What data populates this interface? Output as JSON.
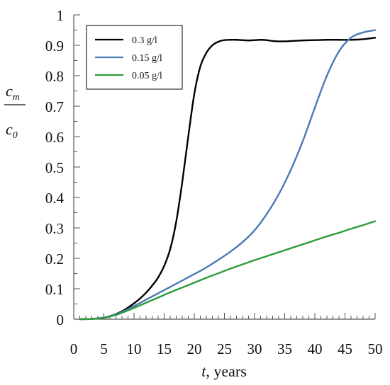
{
  "chart_data": {
    "type": "line",
    "title": "",
    "xlabel_var": "t",
    "xlabel_rest": ", years",
    "ylabel_num": "c",
    "ylabel_num_sub": "m",
    "ylabel_den": "c",
    "ylabel_den_sub": "0",
    "xlim": [
      0,
      50
    ],
    "ylim": [
      0,
      1
    ],
    "xticks": [
      "0",
      "5",
      "10",
      "15",
      "20",
      "25",
      "30",
      "35",
      "40",
      "45",
      "50"
    ],
    "yticks": [
      "0",
      "0.1",
      "0.2",
      "0.3",
      "0.4",
      "0.5",
      "0.6",
      "0.7",
      "0.8",
      "0.9",
      "1"
    ],
    "grid": false,
    "legend_position": "top-left",
    "series": [
      {
        "name": "0.3 g/l",
        "color": "#000000",
        "x": [
          1,
          3,
          5,
          6,
          7,
          8,
          9,
          10,
          11,
          12,
          13,
          14,
          15,
          16,
          17,
          18,
          19,
          20,
          21,
          22,
          23,
          24,
          25,
          26,
          27,
          28,
          29,
          30,
          31,
          32,
          33,
          34,
          35,
          36,
          37,
          38,
          40,
          42,
          44,
          46,
          48,
          50
        ],
        "y": [
          0,
          0.001,
          0.005,
          0.01,
          0.017,
          0.026,
          0.038,
          0.052,
          0.068,
          0.087,
          0.11,
          0.137,
          0.175,
          0.23,
          0.32,
          0.45,
          0.6,
          0.74,
          0.83,
          0.875,
          0.9,
          0.912,
          0.917,
          0.918,
          0.918,
          0.917,
          0.916,
          0.917,
          0.918,
          0.917,
          0.914,
          0.913,
          0.913,
          0.914,
          0.915,
          0.916,
          0.917,
          0.918,
          0.918,
          0.918,
          0.92,
          0.925
        ]
      },
      {
        "name": "0.15 g/l",
        "color": "#4a7ab5",
        "x": [
          1,
          3,
          5,
          6,
          7,
          8,
          9,
          10,
          12,
          14,
          16,
          18,
          20,
          22,
          24,
          26,
          28,
          30,
          32,
          34,
          36,
          38,
          40,
          42,
          44,
          46,
          48,
          50
        ],
        "y": [
          0,
          0.001,
          0.005,
          0.01,
          0.016,
          0.024,
          0.033,
          0.043,
          0.064,
          0.085,
          0.106,
          0.127,
          0.148,
          0.17,
          0.195,
          0.222,
          0.253,
          0.292,
          0.345,
          0.41,
          0.49,
          0.585,
          0.695,
          0.8,
          0.88,
          0.925,
          0.942,
          0.95
        ]
      },
      {
        "name": "0.05 g/l",
        "color": "#2e9b3b",
        "x": [
          1,
          3,
          5,
          6,
          7,
          8,
          9,
          10,
          12,
          14,
          16,
          18,
          20,
          22,
          24,
          26,
          28,
          30,
          32,
          34,
          36,
          38,
          40,
          42,
          44,
          46,
          48,
          50
        ],
        "y": [
          0,
          0.001,
          0.004,
          0.009,
          0.014,
          0.021,
          0.029,
          0.037,
          0.054,
          0.071,
          0.088,
          0.104,
          0.12,
          0.136,
          0.151,
          0.166,
          0.18,
          0.194,
          0.207,
          0.22,
          0.233,
          0.246,
          0.259,
          0.272,
          0.284,
          0.297,
          0.309,
          0.322
        ]
      }
    ]
  }
}
